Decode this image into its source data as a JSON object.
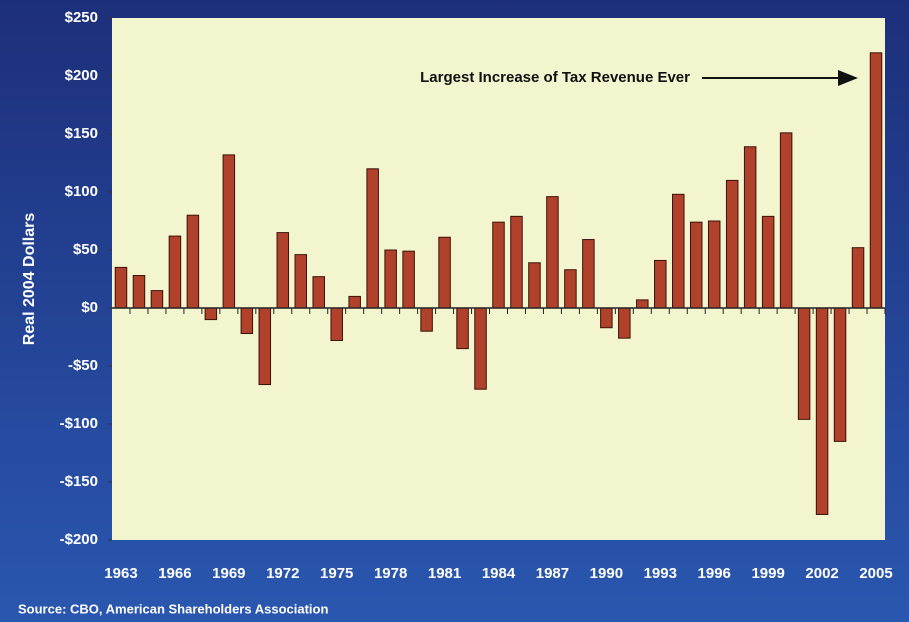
{
  "chart_data": {
    "type": "bar",
    "ylabel": "Real 2004 Dollars",
    "annotation": "Largest Increase of Tax Revenue Ever",
    "source": "Source: CBO, American Shareholders Association",
    "categories": [
      "1963",
      null,
      null,
      "1966",
      null,
      null,
      "1969",
      null,
      null,
      "1972",
      null,
      null,
      "1975",
      null,
      null,
      "1978",
      null,
      null,
      "1981",
      null,
      null,
      "1984",
      null,
      null,
      "1987",
      null,
      null,
      "1990",
      null,
      null,
      "1993",
      null,
      null,
      "1996",
      null,
      null,
      "1999",
      null,
      null,
      "2002",
      null,
      null,
      "2005"
    ],
    "values": [
      35,
      28,
      15,
      62,
      80,
      -10,
      132,
      -22,
      -66,
      65,
      46,
      27,
      -28,
      10,
      120,
      50,
      49,
      -20,
      61,
      -35,
      -70,
      74,
      79,
      39,
      96,
      33,
      59,
      -17,
      -26,
      7,
      41,
      98,
      74,
      75,
      110,
      139,
      79,
      151,
      -96,
      -178,
      -115,
      52,
      220
    ],
    "color": "#b0412b",
    "ylim": [
      -200,
      250
    ],
    "yticks": [
      {
        "value": -200,
        "label": "-$200"
      },
      {
        "value": -150,
        "label": "-$150"
      },
      {
        "value": -100,
        "label": "-$100"
      },
      {
        "value": -50,
        "label": "-$50"
      },
      {
        "value": 0,
        "label": "$0"
      },
      {
        "value": 50,
        "label": "$50"
      },
      {
        "value": 100,
        "label": "$100"
      },
      {
        "value": 150,
        "label": "$150"
      },
      {
        "value": 200,
        "label": "$200"
      },
      {
        "value": 250,
        "label": "$250"
      }
    ]
  }
}
